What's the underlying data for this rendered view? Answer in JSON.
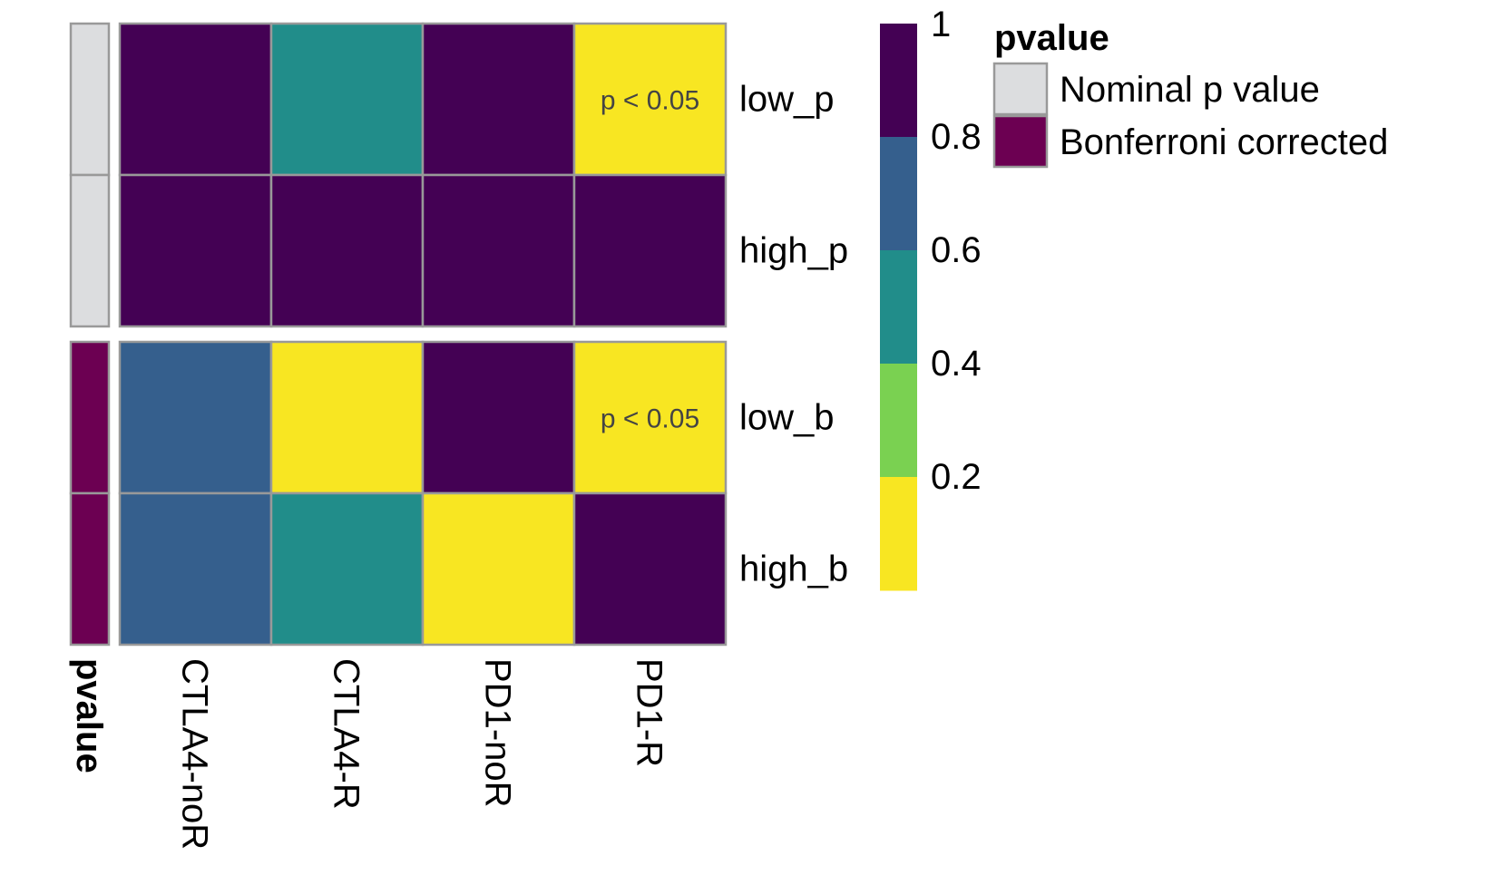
{
  "chart_data": {
    "type": "heatmap",
    "columns": [
      "CTLA4-noR",
      "CTLA4-R",
      "PD1-noR",
      "PD1-R"
    ],
    "rows": [
      "low_p",
      "high_p",
      "low_b",
      "high_b"
    ],
    "row_annotation": {
      "title": "pvalue",
      "values": [
        "Nominal p value",
        "Nominal p value",
        "Bonferroni corrected",
        "Bonferroni corrected"
      ]
    },
    "values": [
      [
        0.9,
        0.5,
        0.9,
        0.1
      ],
      [
        0.9,
        0.9,
        0.9,
        0.9
      ],
      [
        0.7,
        0.1,
        0.9,
        0.1
      ],
      [
        0.7,
        0.5,
        0.1,
        0.9
      ]
    ],
    "cell_annotations": [
      {
        "row": 0,
        "col": 3,
        "text": "p < 0.05"
      },
      {
        "row": 2,
        "col": 3,
        "text": "p < 0.05"
      }
    ],
    "color_scale": {
      "bins": [
        {
          "from": 0.0,
          "to": 0.2,
          "color": "#F8E622"
        },
        {
          "from": 0.2,
          "to": 0.4,
          "color": "#7AD151"
        },
        {
          "from": 0.4,
          "to": 0.6,
          "color": "#218D8A"
        },
        {
          "from": 0.6,
          "to": 0.8,
          "color": "#355F8D"
        },
        {
          "from": 0.8,
          "to": 1.0,
          "color": "#440154"
        }
      ],
      "tick_labels": [
        "1",
        "0.8",
        "0.6",
        "0.4",
        "0.2"
      ],
      "range": [
        0,
        1
      ]
    },
    "legend": {
      "title": "pvalue",
      "position": "right",
      "items": [
        {
          "label": "Nominal p value",
          "color": "#DCDDDF"
        },
        {
          "label": "Bonferroni corrected",
          "color": "#6C0052"
        }
      ]
    }
  }
}
